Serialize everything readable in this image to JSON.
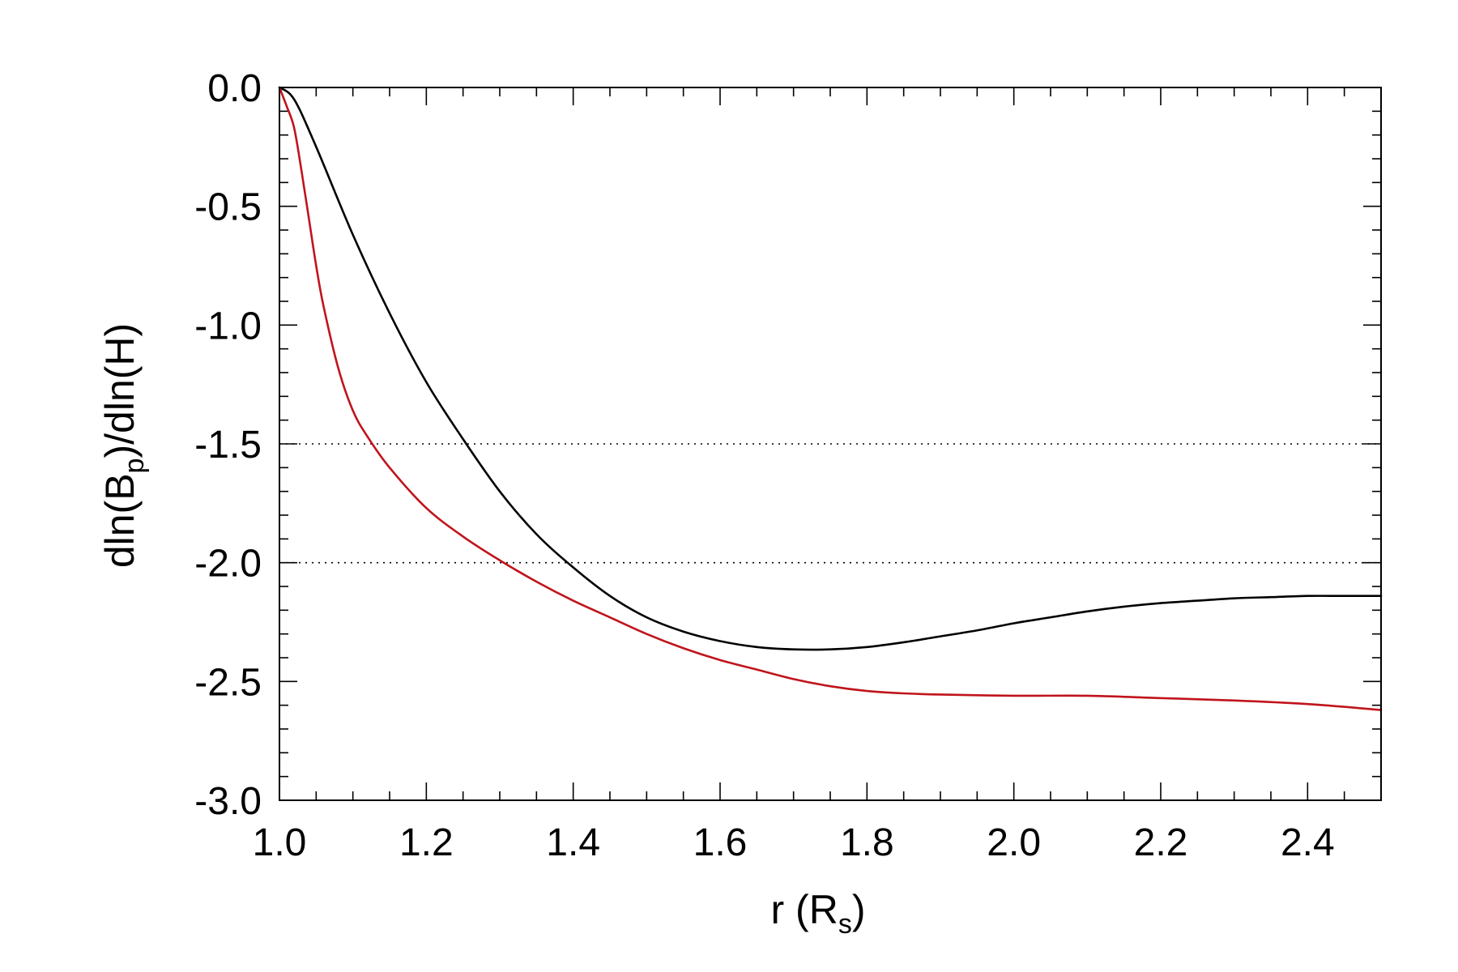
{
  "chart_data": {
    "type": "line",
    "xlabel": {
      "main": "r (R",
      "sub": "s",
      "close": ")"
    },
    "ylabel": {
      "pre": "dln(B",
      "sub": "p",
      "post": ")/dln(H)"
    },
    "xlim": [
      1.0,
      2.5
    ],
    "ylim": [
      -3.0,
      0.0
    ],
    "xticks": [
      1.0,
      1.2,
      1.4,
      1.6,
      1.8,
      2.0,
      2.2,
      2.4
    ],
    "xtick_labels": [
      "1.0",
      "1.2",
      "1.4",
      "1.6",
      "1.8",
      "2.0",
      "2.2",
      "2.4"
    ],
    "yticks": [
      0.0,
      -0.5,
      -1.0,
      -1.5,
      -2.0,
      -2.5,
      -3.0
    ],
    "ytick_labels": [
      "0.0",
      "-0.5",
      "-1.0",
      "-1.5",
      "-2.0",
      "-2.5",
      "-3.0"
    ],
    "x_minor_step": 0.05,
    "y_minor_step": 0.1,
    "reference_lines": [
      {
        "y": -1.5,
        "style": "dotted"
      },
      {
        "y": -2.0,
        "style": "dotted"
      }
    ],
    "grid": false,
    "series": [
      {
        "color": "#000000",
        "points": [
          [
            1.0,
            0.0
          ],
          [
            1.02,
            -0.05
          ],
          [
            1.05,
            -0.25
          ],
          [
            1.1,
            -0.62
          ],
          [
            1.15,
            -0.95
          ],
          [
            1.2,
            -1.24
          ],
          [
            1.25,
            -1.48
          ],
          [
            1.3,
            -1.7
          ],
          [
            1.35,
            -1.88
          ],
          [
            1.4,
            -2.02
          ],
          [
            1.45,
            -2.14
          ],
          [
            1.5,
            -2.23
          ],
          [
            1.55,
            -2.29
          ],
          [
            1.6,
            -2.33
          ],
          [
            1.65,
            -2.355
          ],
          [
            1.7,
            -2.365
          ],
          [
            1.75,
            -2.365
          ],
          [
            1.8,
            -2.355
          ],
          [
            1.85,
            -2.335
          ],
          [
            1.9,
            -2.31
          ],
          [
            1.95,
            -2.285
          ],
          [
            2.0,
            -2.255
          ],
          [
            2.05,
            -2.23
          ],
          [
            2.1,
            -2.205
          ],
          [
            2.15,
            -2.185
          ],
          [
            2.2,
            -2.17
          ],
          [
            2.25,
            -2.16
          ],
          [
            2.3,
            -2.15
          ],
          [
            2.35,
            -2.145
          ],
          [
            2.4,
            -2.14
          ],
          [
            2.45,
            -2.14
          ],
          [
            2.5,
            -2.14
          ]
        ]
      },
      {
        "color": "#c0141c",
        "points": [
          [
            1.0,
            0.0
          ],
          [
            1.01,
            -0.08
          ],
          [
            1.02,
            -0.17
          ],
          [
            1.03,
            -0.35
          ],
          [
            1.04,
            -0.55
          ],
          [
            1.05,
            -0.75
          ],
          [
            1.06,
            -0.92
          ],
          [
            1.08,
            -1.18
          ],
          [
            1.1,
            -1.36
          ],
          [
            1.12,
            -1.47
          ],
          [
            1.15,
            -1.6
          ],
          [
            1.2,
            -1.77
          ],
          [
            1.25,
            -1.89
          ],
          [
            1.3,
            -1.99
          ],
          [
            1.35,
            -2.08
          ],
          [
            1.4,
            -2.16
          ],
          [
            1.45,
            -2.23
          ],
          [
            1.5,
            -2.3
          ],
          [
            1.55,
            -2.36
          ],
          [
            1.6,
            -2.41
          ],
          [
            1.65,
            -2.45
          ],
          [
            1.7,
            -2.49
          ],
          [
            1.75,
            -2.52
          ],
          [
            1.8,
            -2.54
          ],
          [
            1.85,
            -2.55
          ],
          [
            1.9,
            -2.555
          ],
          [
            2.0,
            -2.56
          ],
          [
            2.1,
            -2.56
          ],
          [
            2.2,
            -2.57
          ],
          [
            2.3,
            -2.58
          ],
          [
            2.4,
            -2.595
          ],
          [
            2.5,
            -2.62
          ]
        ]
      }
    ]
  }
}
